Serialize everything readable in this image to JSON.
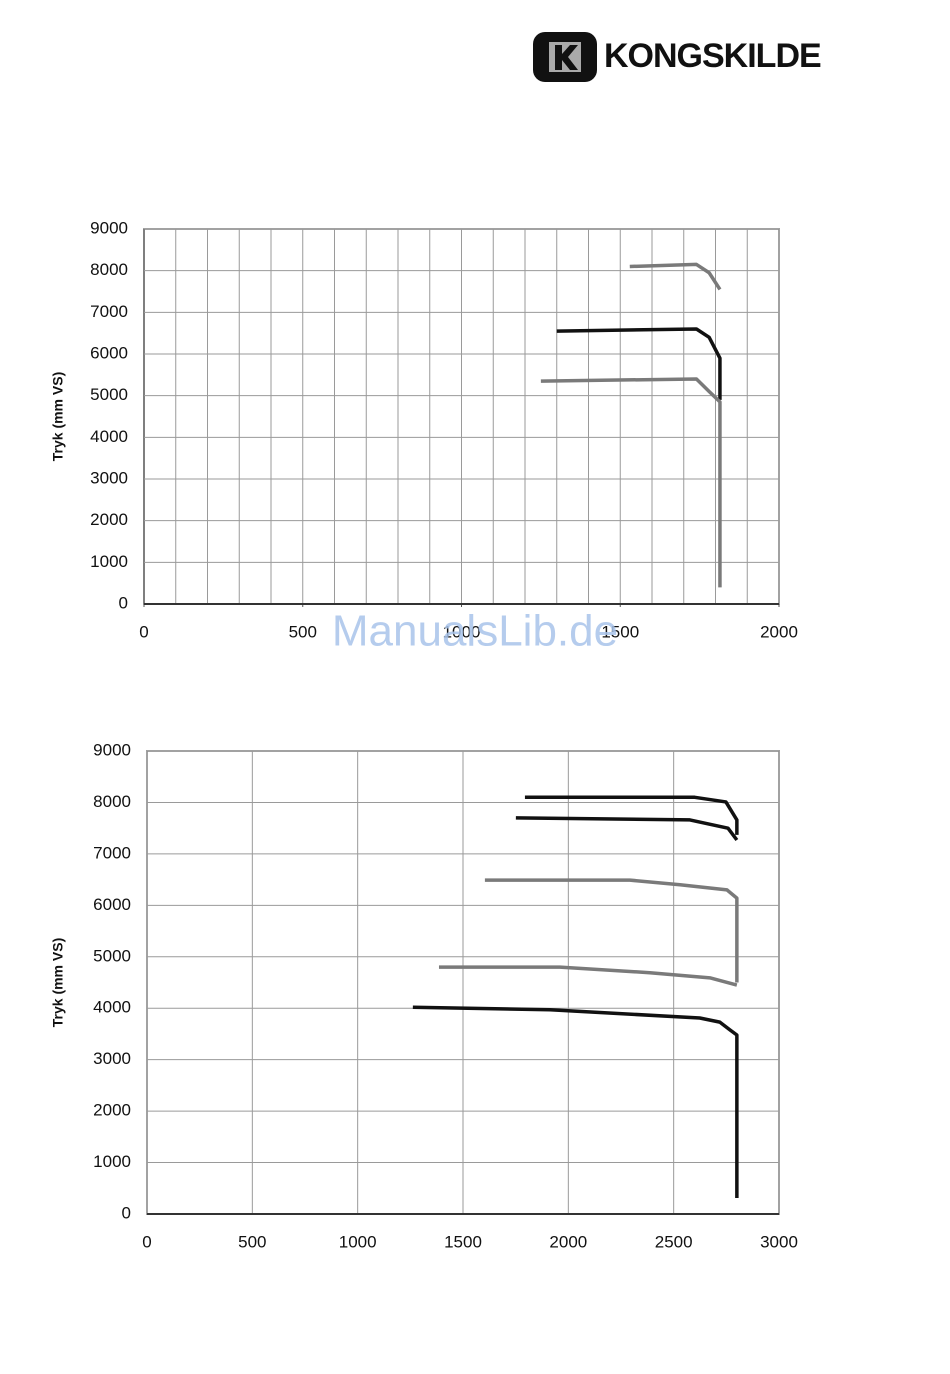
{
  "logo": {
    "text": "KONGSKILDE"
  },
  "watermark": "ManualsLib.de",
  "chart_data": [
    {
      "type": "line",
      "ylabel": "Tryk (mm VS)",
      "xlim": [
        0,
        2000
      ],
      "ylim": [
        0,
        9000
      ],
      "xticks": [
        0,
        500,
        1000,
        1500,
        2000
      ],
      "yticks": [
        0,
        1000,
        2000,
        3000,
        4000,
        5000,
        6000,
        7000,
        8000,
        9000
      ],
      "xgrid": [
        100,
        200,
        300,
        400,
        500,
        600,
        700,
        800,
        900,
        1000,
        1100,
        1200,
        1300,
        1400,
        1500,
        1600,
        1700,
        1800,
        1900,
        2000
      ],
      "grid": true,
      "series": [
        {
          "color": "#7a7a7a",
          "x": [
            1530,
            1740,
            1780,
            1814
          ],
          "values": [
            8100,
            8150,
            7950,
            7550
          ]
        },
        {
          "color": "#111111",
          "x": [
            1300,
            1740,
            1780,
            1814,
            1814
          ],
          "values": [
            6550,
            6600,
            6400,
            5900,
            4900
          ]
        },
        {
          "color": "#7a7a7a",
          "x": [
            1250,
            1740,
            1780,
            1814,
            1814
          ],
          "values": [
            5350,
            5400,
            5100,
            4850,
            400
          ]
        }
      ]
    },
    {
      "type": "line",
      "ylabel": "Tryk (mm VS)",
      "xlim": [
        0,
        3000
      ],
      "ylim": [
        0,
        9000
      ],
      "xticks": [
        0,
        500,
        1000,
        1500,
        2000,
        2500,
        3000
      ],
      "yticks": [
        0,
        1000,
        2000,
        3000,
        4000,
        5000,
        6000,
        7000,
        8000,
        9000
      ],
      "grid": true,
      "series": [
        {
          "color": "#111111",
          "x": [
            1794,
            2600,
            2748,
            2800,
            2800
          ],
          "values": [
            8100,
            8100,
            8010,
            7660,
            7370
          ]
        },
        {
          "color": "#111111",
          "x": [
            1751,
            2577,
            2758,
            2800
          ],
          "values": [
            7700,
            7660,
            7500,
            7270
          ]
        },
        {
          "color": "#7a7a7a",
          "x": [
            1604,
            2292,
            2530,
            2753,
            2800,
            2800
          ],
          "values": [
            6490,
            6490,
            6400,
            6300,
            6140,
            4500
          ]
        },
        {
          "color": "#7a7a7a",
          "x": [
            1386,
            1960,
            2387,
            2672,
            2800
          ],
          "values": [
            4800,
            4800,
            4690,
            4590,
            4450
          ]
        },
        {
          "color": "#111111",
          "x": [
            1262,
            1913,
            2624,
            2719,
            2767,
            2800,
            2800
          ],
          "values": [
            4020,
            3970,
            3810,
            3730,
            3580,
            3480,
            310
          ]
        }
      ]
    }
  ]
}
